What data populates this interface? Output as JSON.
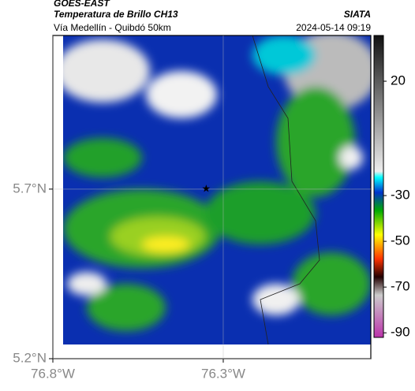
{
  "header": {
    "product": "GOES-EAST",
    "title": "Temperatura de Brillo CH13",
    "subtitle": "Vía Medellín - Quibdó 50km",
    "source": "SIATA",
    "datetime": "2024-05-14 09:19"
  },
  "map": {
    "xlim": [
      -76.8,
      -75.867
    ],
    "ylim": [
      5.2,
      6.153
    ],
    "xticks": [
      {
        "value": -76.8,
        "label": "76.8°W"
      },
      {
        "value": -76.3,
        "label": "76.3°W"
      }
    ],
    "yticks": [
      {
        "value": 5.2,
        "label": "5.2°N"
      },
      {
        "value": 5.7,
        "label": "5.7°N"
      }
    ],
    "grid": true,
    "marker": {
      "lon": -76.35,
      "lat": 5.7
    }
  },
  "colorbar": {
    "lim": [
      -92,
      40
    ],
    "ticks": [
      20,
      -30,
      -50,
      -70,
      -90
    ]
  }
}
